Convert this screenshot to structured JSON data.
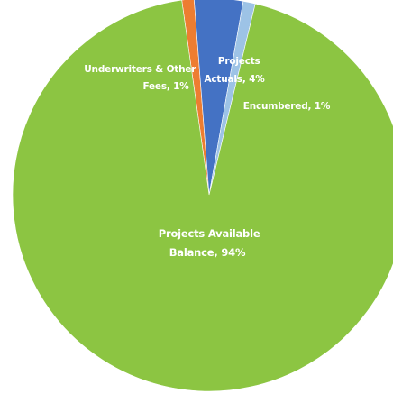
{
  "chart_data": {
    "type": "pie",
    "start_angle_deg": -8,
    "direction": "clockwise",
    "slices": [
      {
        "label_lines": [
          "Underwriters & Other",
          "Fees, 1%"
        ],
        "value": 1,
        "color": "#ed7d31"
      },
      {
        "label_lines": [
          "Projects",
          "Actuals, 4%"
        ],
        "value": 4,
        "color": "#4472c4"
      },
      {
        "label_lines": [
          "Encumbered, 1%"
        ],
        "value": 1,
        "color": "#9dc3e6"
      },
      {
        "label_lines": [
          "Projects Available",
          "Balance, 94%"
        ],
        "value": 94,
        "color": "#8cc542"
      }
    ]
  }
}
